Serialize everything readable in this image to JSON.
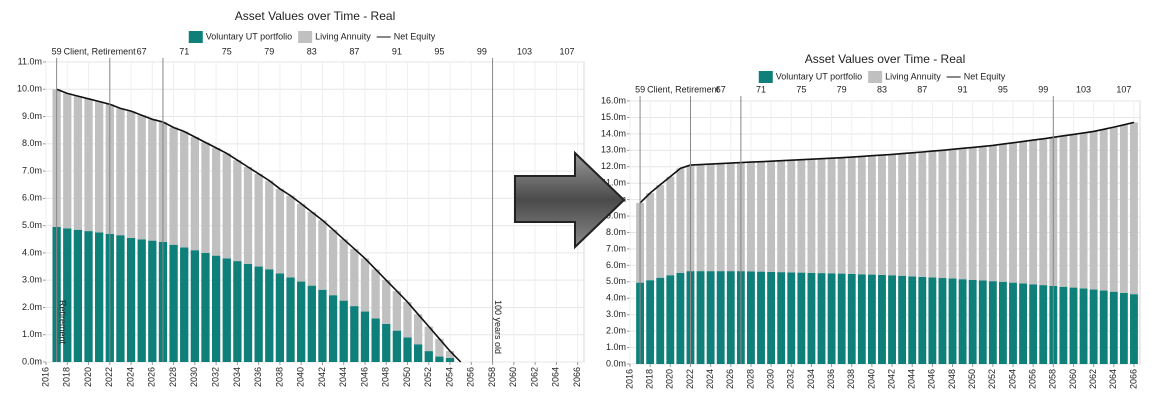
{
  "chart_data": [
    {
      "type": "bar",
      "stacked": true,
      "title": "Asset Values over Time - Real",
      "x": [
        2017,
        2018,
        2019,
        2020,
        2021,
        2022,
        2023,
        2024,
        2025,
        2026,
        2027,
        2028,
        2029,
        2030,
        2031,
        2032,
        2033,
        2034,
        2035,
        2036,
        2037,
        2038,
        2039,
        2040,
        2041,
        2042,
        2043,
        2044,
        2045,
        2046,
        2047,
        2048,
        2049,
        2050,
        2051,
        2052,
        2053,
        2054,
        2055,
        2056,
        2057,
        2058,
        2059,
        2060,
        2061,
        2062,
        2063,
        2064,
        2065,
        2066
      ],
      "series": [
        {
          "name": "Voluntary UT portfolio",
          "color": "#0f7f7a",
          "values": [
            4.95,
            4.9,
            4.85,
            4.8,
            4.75,
            4.7,
            4.65,
            4.55,
            4.5,
            4.45,
            4.4,
            4.3,
            4.2,
            4.1,
            4.0,
            3.9,
            3.8,
            3.7,
            3.6,
            3.5,
            3.4,
            3.25,
            3.1,
            2.95,
            2.8,
            2.65,
            2.45,
            2.25,
            2.05,
            1.85,
            1.6,
            1.4,
            1.15,
            0.9,
            0.65,
            0.4,
            0.2,
            0.15,
            0,
            0,
            0,
            0,
            0,
            0,
            0,
            0,
            0,
            0,
            0,
            0
          ]
        },
        {
          "name": "Living Annuity",
          "color": "#c0c0c0",
          "values": [
            5.05,
            4.95,
            4.9,
            4.85,
            4.8,
            4.75,
            4.65,
            4.65,
            4.55,
            4.45,
            4.4,
            4.3,
            4.25,
            4.15,
            4.05,
            3.95,
            3.85,
            3.7,
            3.55,
            3.4,
            3.25,
            3.1,
            3.0,
            2.85,
            2.7,
            2.55,
            2.4,
            2.25,
            2.1,
            1.95,
            1.8,
            1.6,
            1.45,
            1.3,
            1.1,
            0.9,
            0.65,
            0.25,
            0,
            0,
            0,
            0,
            0,
            0,
            0,
            0,
            0,
            0,
            0,
            0
          ]
        },
        {
          "name": "Net Equity",
          "type": "line",
          "color": "#111111",
          "values": [
            10.0,
            9.85,
            9.75,
            9.65,
            9.55,
            9.45,
            9.3,
            9.2,
            9.05,
            8.9,
            8.8,
            8.6,
            8.45,
            8.25,
            8.05,
            7.85,
            7.65,
            7.4,
            7.15,
            6.9,
            6.65,
            6.35,
            6.1,
            5.8,
            5.5,
            5.2,
            4.85,
            4.5,
            4.15,
            3.8,
            3.4,
            3.0,
            2.6,
            2.2,
            1.75,
            1.3,
            0.85,
            0.4,
            0,
            null,
            null,
            null,
            null,
            null,
            null,
            null,
            null,
            null,
            null,
            null
          ]
        }
      ],
      "xlim": [
        2016,
        2066.6
      ],
      "xticks": [
        2016,
        2018,
        2020,
        2022,
        2024,
        2026,
        2028,
        2030,
        2032,
        2034,
        2036,
        2038,
        2040,
        2042,
        2044,
        2046,
        2048,
        2050,
        2052,
        2054,
        2056,
        2058,
        2060,
        2062,
        2064,
        2066
      ],
      "x2lim": [
        58,
        108.6
      ],
      "x2ticks": [
        59,
        67,
        71,
        75,
        79,
        83,
        87,
        91,
        95,
        99,
        103,
        107
      ],
      "x2label": "Client, Retirement",
      "ylim": [
        0,
        11
      ],
      "yticks": [
        {
          "value": 0,
          "label": "0.0m"
        },
        {
          "value": 1,
          "label": "1.0m"
        },
        {
          "value": 2,
          "label": "2.0m"
        },
        {
          "value": 3,
          "label": "3.0m"
        },
        {
          "value": 4,
          "label": "4.0m"
        },
        {
          "value": 5,
          "label": "5.0m"
        },
        {
          "value": 6,
          "label": "6.0m"
        },
        {
          "value": 7,
          "label": "7.0m"
        },
        {
          "value": 8,
          "label": "8.0m"
        },
        {
          "value": 9,
          "label": "9.0m"
        },
        {
          "value": 10,
          "label": "10.0m"
        },
        {
          "value": 11,
          "label": "11.0m"
        }
      ],
      "grid": true,
      "markers": [
        {
          "x": 2017,
          "label": "Retirement"
        },
        {
          "x": 2022
        },
        {
          "x": 2027
        },
        {
          "x": 2058,
          "label": "100 years old"
        }
      ]
    },
    {
      "type": "bar",
      "stacked": true,
      "title": "Asset Values over Time - Real",
      "x": [
        2017,
        2018,
        2019,
        2020,
        2021,
        2022,
        2023,
        2024,
        2025,
        2026,
        2027,
        2028,
        2029,
        2030,
        2031,
        2032,
        2033,
        2034,
        2035,
        2036,
        2037,
        2038,
        2039,
        2040,
        2041,
        2042,
        2043,
        2044,
        2045,
        2046,
        2047,
        2048,
        2049,
        2050,
        2051,
        2052,
        2053,
        2054,
        2055,
        2056,
        2057,
        2058,
        2059,
        2060,
        2061,
        2062,
        2063,
        2064,
        2065,
        2066
      ],
      "series": [
        {
          "name": "Voluntary UT portfolio",
          "color": "#0f7f7a",
          "values": [
            4.95,
            5.1,
            5.25,
            5.4,
            5.55,
            5.65,
            5.65,
            5.65,
            5.65,
            5.65,
            5.65,
            5.63,
            5.62,
            5.6,
            5.59,
            5.57,
            5.56,
            5.54,
            5.53,
            5.52,
            5.5,
            5.48,
            5.46,
            5.44,
            5.42,
            5.4,
            5.37,
            5.33,
            5.3,
            5.27,
            5.23,
            5.2,
            5.16,
            5.12,
            5.08,
            5.04,
            5.0,
            4.95,
            4.9,
            4.85,
            4.8,
            4.75,
            4.7,
            4.65,
            4.6,
            4.53,
            4.47,
            4.4,
            4.33,
            4.25
          ]
        },
        {
          "name": "Living Annuity",
          "color": "#c0c0c0",
          "values": [
            4.85,
            5.3,
            5.65,
            6.0,
            6.35,
            6.45,
            6.48,
            6.51,
            6.54,
            6.57,
            6.6,
            6.65,
            6.69,
            6.74,
            6.78,
            6.83,
            6.87,
            6.92,
            6.96,
            7.0,
            7.05,
            7.11,
            7.17,
            7.23,
            7.29,
            7.35,
            7.43,
            7.52,
            7.6,
            7.68,
            7.77,
            7.86,
            7.96,
            8.06,
            8.16,
            8.26,
            8.38,
            8.51,
            8.64,
            8.77,
            8.9,
            9.04,
            9.18,
            9.32,
            9.46,
            9.62,
            9.81,
            10.01,
            10.22,
            10.45
          ]
        },
        {
          "name": "Net Equity",
          "type": "line",
          "color": "#111111",
          "values": [
            9.8,
            10.4,
            10.9,
            11.4,
            11.9,
            12.1,
            12.13,
            12.16,
            12.19,
            12.22,
            12.25,
            12.28,
            12.31,
            12.34,
            12.37,
            12.4,
            12.43,
            12.46,
            12.49,
            12.52,
            12.55,
            12.59,
            12.63,
            12.67,
            12.71,
            12.75,
            12.8,
            12.85,
            12.9,
            12.95,
            13.0,
            13.06,
            13.12,
            13.18,
            13.24,
            13.3,
            13.38,
            13.46,
            13.54,
            13.62,
            13.7,
            13.79,
            13.88,
            13.97,
            14.06,
            14.15,
            14.28,
            14.41,
            14.55,
            14.7
          ]
        }
      ],
      "xlim": [
        2016,
        2066.6
      ],
      "xticks": [
        2016,
        2018,
        2020,
        2022,
        2024,
        2026,
        2028,
        2030,
        2032,
        2034,
        2036,
        2038,
        2040,
        2042,
        2044,
        2046,
        2048,
        2050,
        2052,
        2054,
        2056,
        2058,
        2060,
        2062,
        2064,
        2066
      ],
      "x2lim": [
        58,
        108.6
      ],
      "x2ticks": [
        59,
        67,
        71,
        75,
        79,
        83,
        87,
        91,
        95,
        99,
        103,
        107
      ],
      "x2label": "Client, Retirement",
      "ylim": [
        0,
        16
      ],
      "yticks": [
        {
          "value": 0,
          "label": "0.0m"
        },
        {
          "value": 1,
          "label": "1.0m"
        },
        {
          "value": 2,
          "label": "2.0m"
        },
        {
          "value": 3,
          "label": "3.0m"
        },
        {
          "value": 4,
          "label": "4.0m"
        },
        {
          "value": 5,
          "label": "5.0m"
        },
        {
          "value": 6,
          "label": "6.0m"
        },
        {
          "value": 7,
          "label": "7.0m"
        },
        {
          "value": 8,
          "label": "8.0m"
        },
        {
          "value": 9,
          "label": "9.0m"
        },
        {
          "value": 10,
          "label": "10.0m"
        },
        {
          "value": 11,
          "label": "11.0m"
        },
        {
          "value": 12,
          "label": "12.0m"
        },
        {
          "value": 13,
          "label": "13.0m"
        },
        {
          "value": 14,
          "label": "14.0m"
        },
        {
          "value": 15,
          "label": "15.0m"
        },
        {
          "value": 16,
          "label": "16.0m"
        }
      ],
      "grid": true,
      "markers": [
        {
          "x": 2017
        },
        {
          "x": 2022
        },
        {
          "x": 2027
        },
        {
          "x": 2058
        }
      ]
    }
  ]
}
